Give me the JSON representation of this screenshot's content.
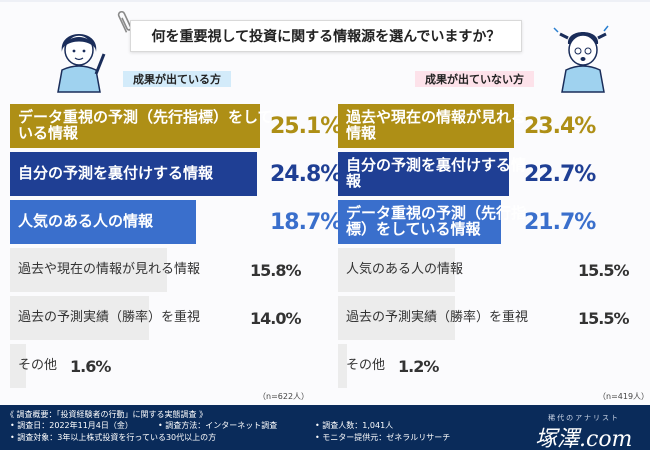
{
  "title": "何を重要視して投資に関する情報源を選んでいますか？",
  "panels": {
    "left": {
      "label": "成果が出ている方",
      "n": "（n=622人）"
    },
    "right": {
      "label": "成果が出ていない方",
      "n": "（n=419人）"
    }
  },
  "footer": {
    "heading": "《 調査概要：「投資経験者の行動」に関する実態調査 》",
    "date": "• 調査日：2022年11月4日（金）",
    "method": "• 調査方法：インターネット調査",
    "count": "• 調査人数：1,041人",
    "target": "• 調査対象：3年以上株式投資を行っている30代以上の方",
    "provider": "• モニター提供元：ゼネラルリサーチ",
    "logo_sub": "稀代のアナリスト",
    "logo": "塚澤.com"
  },
  "colors": {
    "gold": "#ae8f16",
    "navy": "#1f3f94",
    "blue": "#3a6fcc",
    "gray": "#ececec",
    "footer": "#0a2b5a"
  },
  "chart_data": [
    {
      "type": "bar",
      "title": "成果が出ている方",
      "categories": [
        "データ重視の予測（先行指標）をしている情報",
        "自分の予測を裏付けする情報",
        "人気のある人の情報",
        "過去や現在の情報が見れる情報",
        "過去の予測実績（勝率）を重視",
        "その他"
      ],
      "values": [
        25.1,
        24.8,
        18.7,
        15.8,
        14.0,
        1.6
      ],
      "value_labels": [
        "25.1%",
        "24.8%",
        "18.7%",
        "15.8%",
        "14.0%",
        "1.6%"
      ],
      "orientation": "horizontal"
    },
    {
      "type": "bar",
      "title": "成果が出ていない方",
      "categories": [
        "過去や現在の情報が見れる情報",
        "自分の予測を裏付けする情報",
        "データ重視の予測（先行指標）をしている情報",
        "人気のある人の情報",
        "過去の予測実績（勝率）を重視",
        "その他"
      ],
      "values": [
        23.4,
        22.7,
        21.7,
        15.5,
        15.5,
        1.2
      ],
      "value_labels": [
        "23.4%",
        "22.7%",
        "21.7%",
        "15.5%",
        "15.5%",
        "1.2%"
      ],
      "orientation": "horizontal"
    }
  ]
}
